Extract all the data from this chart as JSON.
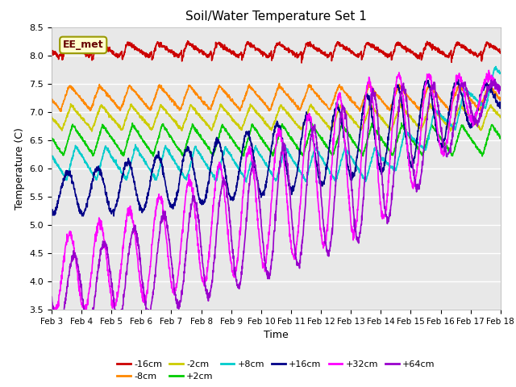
{
  "title": "Soil/Water Temperature Set 1",
  "xlabel": "Time",
  "ylabel": "Temperature (C)",
  "ylim": [
    3.5,
    8.5
  ],
  "xlim": [
    0,
    15
  ],
  "xtick_labels": [
    "Feb 3",
    "Feb 4",
    "Feb 5",
    "Feb 6",
    "Feb 7",
    "Feb 8",
    "Feb 9",
    "Feb 10",
    "Feb 11",
    "Feb 12",
    "Feb 13",
    "Feb 14",
    "Feb 15",
    "Feb 16",
    "Feb 17",
    "Feb 18"
  ],
  "ytick_vals": [
    3.5,
    4.0,
    4.5,
    5.0,
    5.5,
    6.0,
    6.5,
    7.0,
    7.5,
    8.0,
    8.5
  ],
  "series": [
    {
      "label": "-16cm",
      "color": "#cc0000"
    },
    {
      "label": "-8cm",
      "color": "#ff8800"
    },
    {
      "label": "-2cm",
      "color": "#cccc00"
    },
    {
      "label": "+2cm",
      "color": "#00cc00"
    },
    {
      "label": "+8cm",
      "color": "#00cccc"
    },
    {
      "label": "+16cm",
      "color": "#000088"
    },
    {
      "label": "+32cm",
      "color": "#ff00ff"
    },
    {
      "label": "+64cm",
      "color": "#9900cc"
    }
  ],
  "annotation_text": "EE_met",
  "annotation_bg": "#ffffcc",
  "annotation_border": "#999900",
  "bg_color": "#e8e8e8",
  "grid_color": "#ffffff",
  "fig_bg": "#ffffff"
}
